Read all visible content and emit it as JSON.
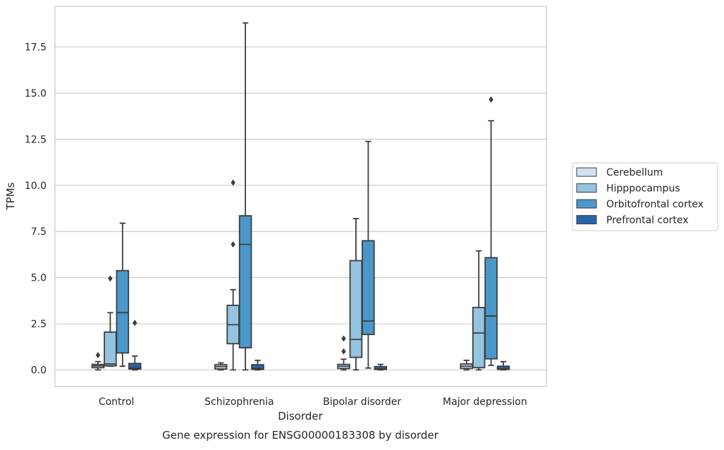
{
  "chart_data": {
    "type": "boxplot",
    "title": "",
    "caption": "Gene expression for ENSG00000183308 by disorder",
    "xlabel": "Disorder",
    "ylabel": "TPMs",
    "ylim": [
      -0.9,
      19.7
    ],
    "yticks": [
      0.0,
      2.5,
      5.0,
      7.5,
      10.0,
      12.5,
      15.0,
      17.5
    ],
    "ytick_labels": [
      "0.0",
      "2.5",
      "5.0",
      "7.5",
      "10.0",
      "12.5",
      "15.0",
      "17.5"
    ],
    "grid": "horizontal",
    "legend_placement": "right",
    "categories": [
      "Control",
      "Schizophrenia",
      "Bipolar disorder",
      "Major depression"
    ],
    "series": [
      {
        "name": "Cerebellum",
        "color": "#d0e1f2",
        "boxes": [
          {
            "whislo": 0.0,
            "q1": 0.12,
            "med": 0.22,
            "q3": 0.3,
            "whishi": 0.45,
            "fliers": [
              0.8
            ]
          },
          {
            "whislo": 0.0,
            "q1": 0.05,
            "med": 0.18,
            "q3": 0.28,
            "whishi": 0.38,
            "fliers": []
          },
          {
            "whislo": 0.0,
            "q1": 0.08,
            "med": 0.2,
            "q3": 0.3,
            "whishi": 0.58,
            "fliers": [
              1.7,
              1.0
            ]
          },
          {
            "whislo": 0.0,
            "q1": 0.08,
            "med": 0.2,
            "q3": 0.32,
            "whishi": 0.52,
            "fliers": []
          }
        ]
      },
      {
        "name": "Hipppocampus",
        "color": "#94c4df",
        "boxes": [
          {
            "whislo": 0.2,
            "q1": 0.22,
            "med": 0.32,
            "q3": 2.05,
            "whishi": 3.1,
            "fliers": [
              4.95
            ]
          },
          {
            "whislo": 0.0,
            "q1": 1.42,
            "med": 2.45,
            "q3": 3.5,
            "whishi": 4.35,
            "fliers": [
              6.8,
              10.15
            ]
          },
          {
            "whislo": 0.0,
            "q1": 0.68,
            "med": 1.65,
            "q3": 5.92,
            "whishi": 8.2,
            "fliers": []
          },
          {
            "whislo": 0.0,
            "q1": 0.12,
            "med": 2.0,
            "q3": 3.38,
            "whishi": 6.45,
            "fliers": []
          }
        ]
      },
      {
        "name": "Orbitofrontal cortex",
        "color": "#4a98c9",
        "boxes": [
          {
            "whislo": 0.2,
            "q1": 0.92,
            "med": 3.1,
            "q3": 5.38,
            "whishi": 7.95,
            "fliers": []
          },
          {
            "whislo": 0.0,
            "q1": 1.2,
            "med": 6.8,
            "q3": 8.35,
            "whishi": 18.8,
            "fliers": []
          },
          {
            "whislo": 0.1,
            "q1": 1.92,
            "med": 2.65,
            "q3": 7.0,
            "whishi": 12.38,
            "fliers": []
          },
          {
            "whislo": 0.25,
            "q1": 0.6,
            "med": 2.92,
            "q3": 6.08,
            "whishi": 13.5,
            "fliers": [
              14.65
            ]
          }
        ]
      },
      {
        "name": "Prefrontal cortex",
        "color": "#2666a8",
        "boxes": [
          {
            "whislo": 0.0,
            "q1": 0.05,
            "med": 0.1,
            "q3": 0.35,
            "whishi": 0.75,
            "fliers": [
              2.55
            ]
          },
          {
            "whislo": 0.0,
            "q1": 0.03,
            "med": 0.08,
            "q3": 0.28,
            "whishi": 0.52,
            "fliers": []
          },
          {
            "whislo": 0.0,
            "q1": 0.03,
            "med": 0.06,
            "q3": 0.18,
            "whishi": 0.3,
            "fliers": []
          },
          {
            "whislo": 0.0,
            "q1": 0.03,
            "med": 0.07,
            "q3": 0.2,
            "whishi": 0.45,
            "fliers": []
          }
        ]
      }
    ]
  }
}
